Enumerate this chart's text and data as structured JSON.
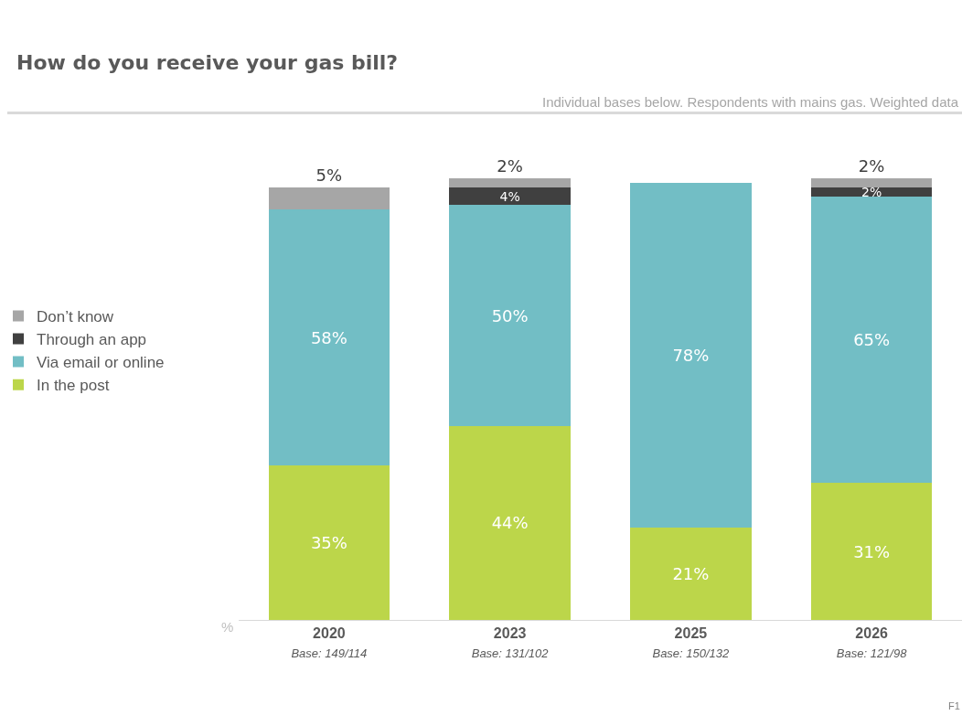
{
  "chart_data": {
    "type": "bar",
    "title": "How do you receive your gas bill?",
    "subtitle": "Individual bases below. Respondents with mains gas. Weighted data",
    "ylabel": "%",
    "categories": [
      "2020\nBase: 149/114",
      "2023\nBase: 131/102",
      "2025\nBase: 150/132",
      "2026\nBase: 121/98"
    ],
    "stacked": true,
    "legend": "left",
    "series": [
      {
        "name": "In the post",
        "color": "#bcd64a",
        "values": [
          35,
          44,
          21,
          31
        ],
        "value_labels": [
          "35%",
          "44%",
          "21%",
          "31%"
        ]
      },
      {
        "name": "Via email or online",
        "color": "#72bec5",
        "values": [
          58,
          50,
          78,
          65
        ],
        "value_labels": [
          "58%",
          "50%",
          "78%",
          "65%"
        ]
      },
      {
        "name": "Through an app",
        "color": "#404040",
        "values": [
          null,
          4,
          null,
          2
        ],
        "value_labels": [
          null,
          "4%",
          null,
          "2%"
        ]
      },
      {
        "name": "Don’t know",
        "color": "#a6a6a6",
        "values": [
          5,
          2,
          null,
          2
        ],
        "value_labels": [
          "5%",
          "2%",
          null,
          "2%"
        ]
      }
    ],
    "annotations": [
      "F1"
    ]
  }
}
